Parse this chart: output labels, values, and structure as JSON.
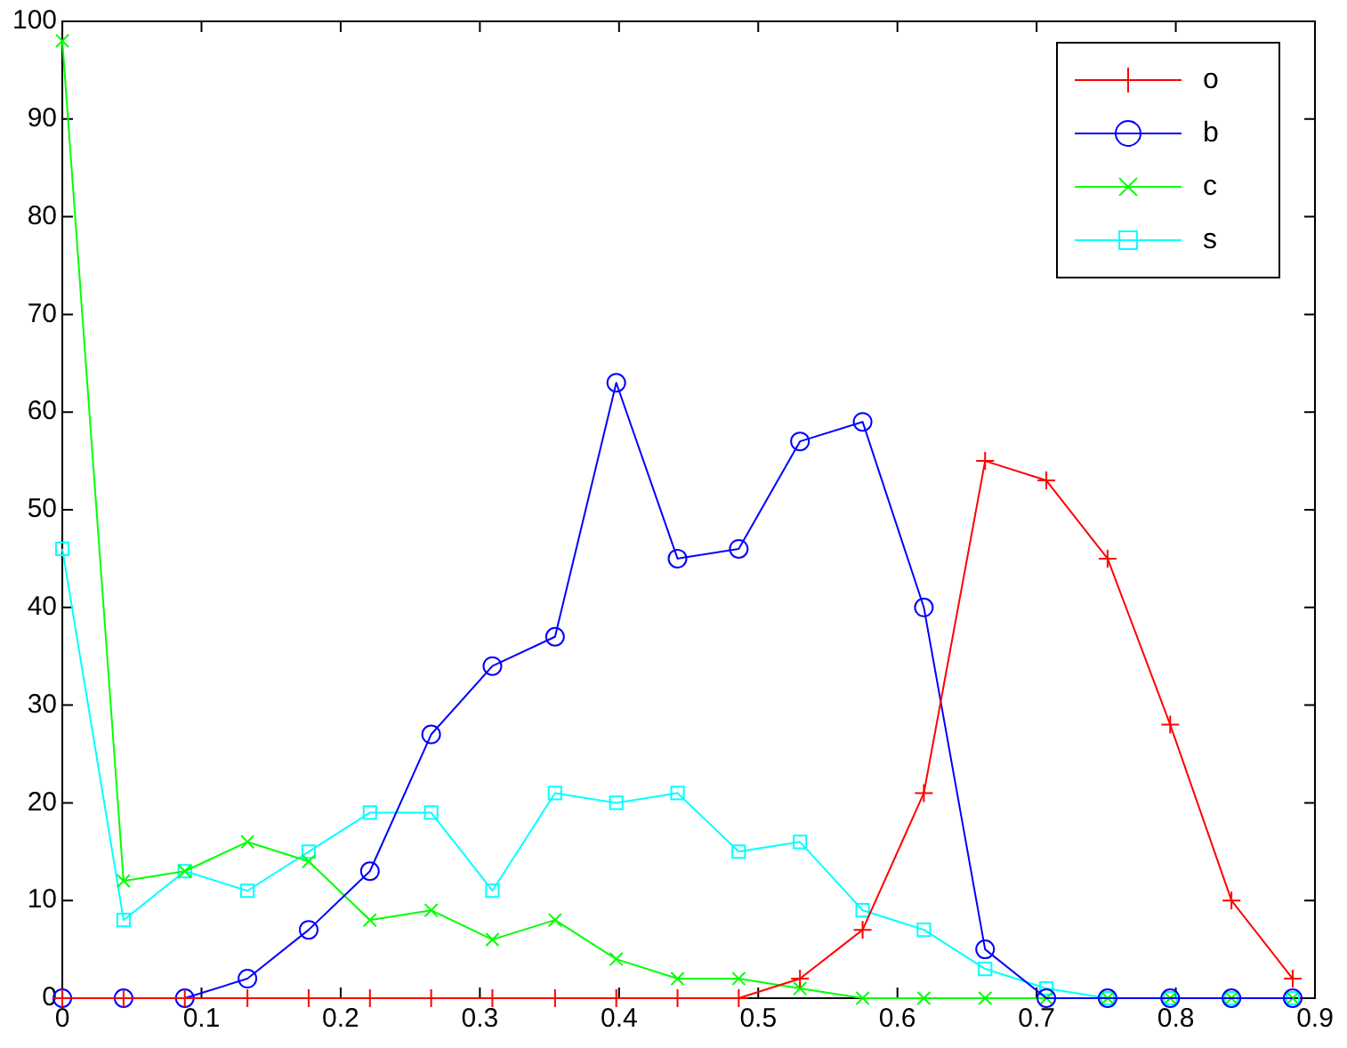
{
  "chart_data": {
    "type": "line",
    "x": [
      0,
      0.044,
      0.088,
      0.133,
      0.177,
      0.221,
      0.265,
      0.309,
      0.354,
      0.398,
      0.442,
      0.486,
      0.53,
      0.575,
      0.619,
      0.663,
      0.707,
      0.751,
      0.796,
      0.84,
      0.884
    ],
    "series": [
      {
        "name": "o",
        "color": "#ff0000",
        "marker": "plus",
        "values": [
          0,
          0,
          0,
          0,
          0,
          0,
          0,
          0,
          0,
          0,
          0,
          0,
          2,
          7,
          21,
          55,
          53,
          45,
          28,
          10,
          2
        ]
      },
      {
        "name": "b",
        "color": "#0000ff",
        "marker": "circle",
        "values": [
          0,
          0,
          0,
          2,
          7,
          13,
          27,
          34,
          37,
          63,
          45,
          46,
          57,
          59,
          40,
          5,
          0,
          0,
          0,
          0,
          0
        ]
      },
      {
        "name": "c",
        "color": "#00ff00",
        "marker": "cross",
        "values": [
          98,
          12,
          13,
          16,
          14,
          8,
          9,
          6,
          8,
          4,
          2,
          2,
          1,
          0,
          0,
          0,
          0,
          0,
          0,
          0,
          0
        ]
      },
      {
        "name": "s",
        "color": "#00ffff",
        "marker": "square",
        "values": [
          46,
          8,
          13,
          11,
          15,
          19,
          19,
          11,
          21,
          20,
          21,
          15,
          16,
          9,
          7,
          3,
          1,
          0,
          0,
          0,
          0
        ]
      }
    ],
    "xlim": [
      0,
      0.9
    ],
    "xticks": [
      0,
      0.1,
      0.2,
      0.3,
      0.4,
      0.5,
      0.6,
      0.7,
      0.8,
      0.9
    ],
    "ylim": [
      0,
      100
    ],
    "yticks": [
      0,
      10,
      20,
      30,
      40,
      50,
      60,
      70,
      80,
      90,
      100
    ],
    "grid": false,
    "legend": "top right",
    "line_style": "solid"
  }
}
